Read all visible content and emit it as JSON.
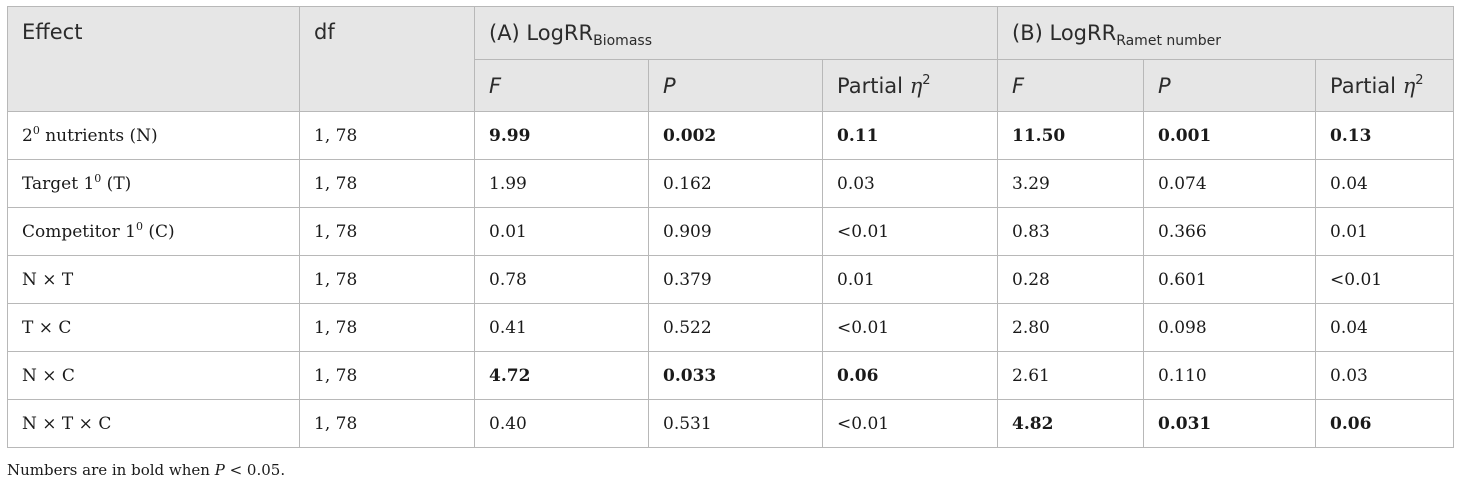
{
  "table": {
    "header": {
      "effect": "Effect",
      "df": "df",
      "group_a": {
        "prefix": "(A) LogRR",
        "sub": "Biomass"
      },
      "group_b": {
        "prefix": "(B) LogRR",
        "sub": "Ramet number"
      },
      "sub_f": "F",
      "sub_p": "P",
      "sub_eta_text": "Partial",
      "sub_eta_symbol": "η",
      "sub_eta_exp": "2"
    },
    "rows": [
      {
        "effect_pre": "2",
        "effect_sup": "0",
        "effect_post": " nutrients (N)",
        "df": "1, 78",
        "a_f": "9.99",
        "a_p": "0.002",
        "a_eta": "0.11",
        "b_f": "11.50",
        "b_p": "0.001",
        "b_eta": "0.13"
      },
      {
        "effect_pre": "Target 1",
        "effect_sup": "0",
        "effect_post": " (T)",
        "df": "1, 78",
        "a_f": "1.99",
        "a_p": "0.162",
        "a_eta": "0.03",
        "b_f": "3.29",
        "b_p": "0.074",
        "b_eta": "0.04"
      },
      {
        "effect_pre": "Competitor 1",
        "effect_sup": "0",
        "effect_post": " (C)",
        "df": "1, 78",
        "a_f": "0.01",
        "a_p": "0.909",
        "a_eta": "<0.01",
        "b_f": "0.83",
        "b_p": "0.366",
        "b_eta": "0.01"
      },
      {
        "effect_pre": "N × T",
        "effect_sup": "",
        "effect_post": "",
        "df": "1, 78",
        "a_f": "0.78",
        "a_p": "0.379",
        "a_eta": "0.01",
        "b_f": "0.28",
        "b_p": "0.601",
        "b_eta": "<0.01"
      },
      {
        "effect_pre": "T × C",
        "effect_sup": "",
        "effect_post": "",
        "df": "1, 78",
        "a_f": "0.41",
        "a_p": "0.522",
        "a_eta": "<0.01",
        "b_f": "2.80",
        "b_p": "0.098",
        "b_eta": "0.04"
      },
      {
        "effect_pre": "N × C",
        "effect_sup": "",
        "effect_post": "",
        "df": "1, 78",
        "a_f": "4.72",
        "a_p": "0.033",
        "a_eta": "0.06",
        "b_f": "2.61",
        "b_p": "0.110",
        "b_eta": "0.03"
      },
      {
        "effect_pre": "N × T × C",
        "effect_sup": "",
        "effect_post": "",
        "df": "1, 78",
        "a_f": "0.40",
        "a_p": "0.531",
        "a_eta": "<0.01",
        "b_f": "4.82",
        "b_p": "0.031",
        "b_eta": "0.06"
      }
    ],
    "note": {
      "pre": "Numbers are in bold when ",
      "var": "P",
      "post": " < 0.05."
    }
  }
}
